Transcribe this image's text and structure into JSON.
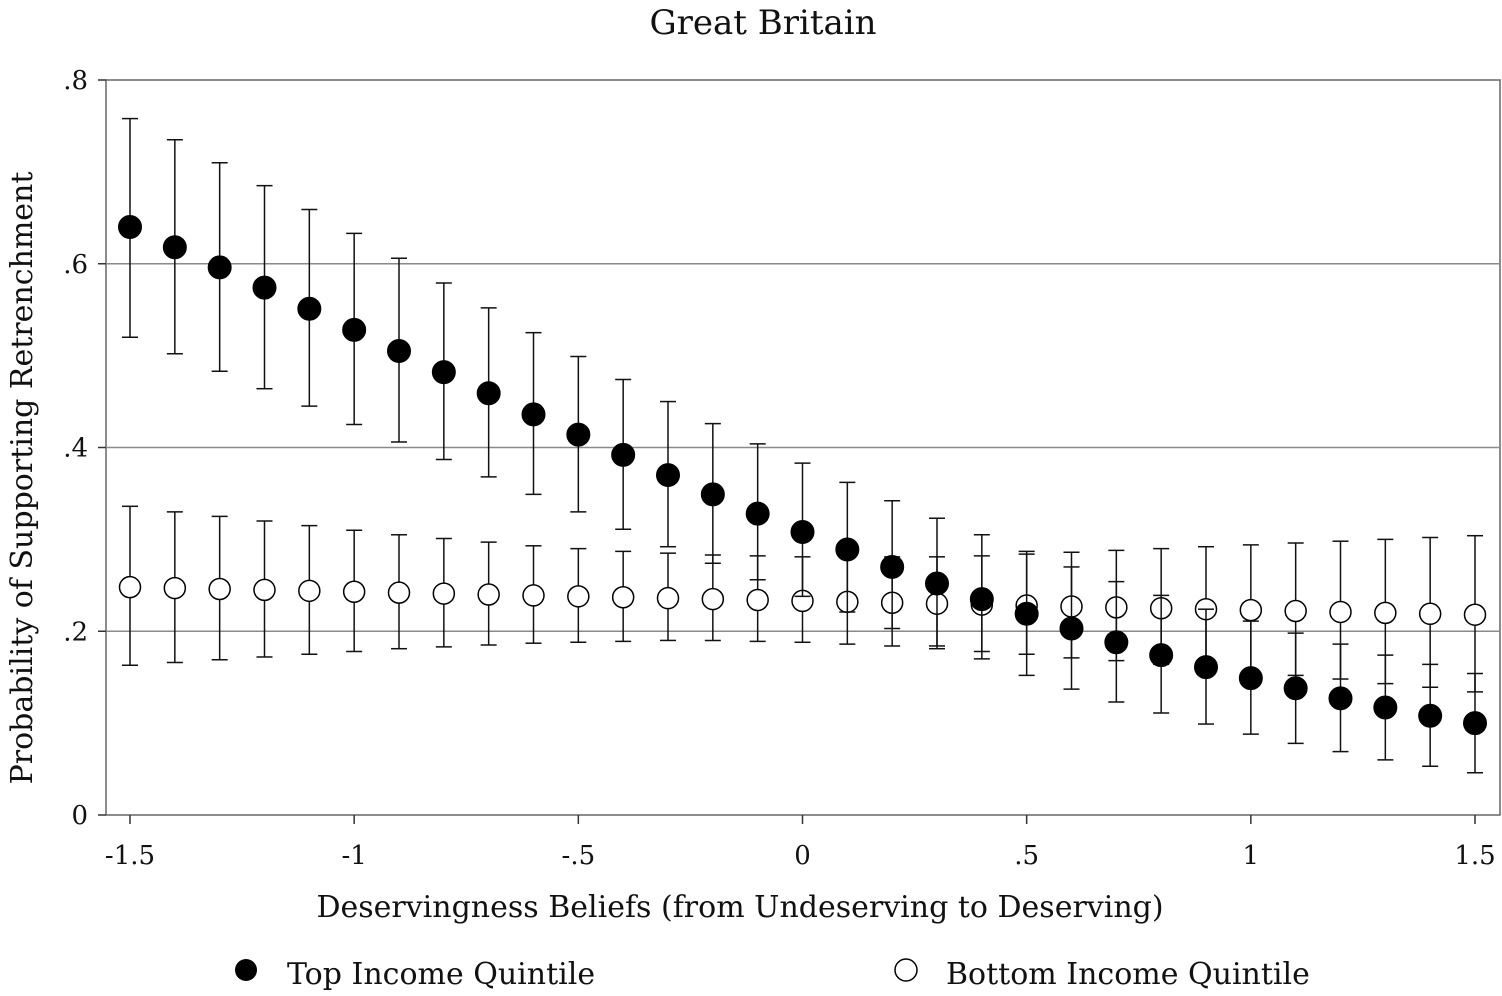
{
  "chart_data": {
    "type": "scatter",
    "title": "Great Britain",
    "xlabel": "Deservingness Beliefs (from Undeserving to Deserving)",
    "ylabel": "Probability of Supporting Retrenchment",
    "xlim": [
      -1.5,
      1.5
    ],
    "ylim": [
      0,
      0.8
    ],
    "x_ticks": [
      -1.5,
      -1,
      -0.5,
      0,
      0.5,
      1,
      1.5
    ],
    "x_tick_labels": [
      "-1.5",
      "-1",
      "-.5",
      "0",
      ".5",
      "1",
      "1.5"
    ],
    "y_ticks": [
      0,
      0.2,
      0.4,
      0.6,
      0.8
    ],
    "y_tick_labels": [
      "0",
      ".2",
      ".4",
      ".6",
      ".8"
    ],
    "grid": "horizontal",
    "legend_position": "bottom",
    "x": [
      -1.5,
      -1.4,
      -1.3,
      -1.2,
      -1.1,
      -1.0,
      -0.9,
      -0.8,
      -0.7,
      -0.6,
      -0.5,
      -0.4,
      -0.3,
      -0.2,
      -0.1,
      0.0,
      0.1,
      0.2,
      0.3,
      0.4,
      0.5,
      0.6,
      0.7,
      0.8,
      0.9,
      1.0,
      1.1,
      1.2,
      1.3,
      1.4,
      1.5
    ],
    "series": [
      {
        "name": "Top Income Quintile",
        "marker": "filled-circle",
        "color": "#000000",
        "values": [
          0.64,
          0.618,
          0.596,
          0.574,
          0.551,
          0.528,
          0.505,
          0.482,
          0.459,
          0.436,
          0.414,
          0.392,
          0.37,
          0.349,
          0.328,
          0.308,
          0.289,
          0.27,
          0.252,
          0.235,
          0.219,
          0.203,
          0.188,
          0.174,
          0.161,
          0.149,
          0.138,
          0.127,
          0.117,
          0.108,
          0.1
        ],
        "lower": [
          0.52,
          0.502,
          0.483,
          0.464,
          0.445,
          0.425,
          0.406,
          0.387,
          0.368,
          0.349,
          0.33,
          0.311,
          0.292,
          0.274,
          0.256,
          0.238,
          0.221,
          0.203,
          0.184,
          0.17,
          0.152,
          0.137,
          0.123,
          0.111,
          0.099,
          0.088,
          0.078,
          0.069,
          0.06,
          0.053,
          0.046
        ],
        "upper": [
          0.758,
          0.735,
          0.71,
          0.685,
          0.659,
          0.633,
          0.606,
          0.579,
          0.552,
          0.525,
          0.499,
          0.474,
          0.45,
          0.426,
          0.404,
          0.383,
          0.362,
          0.342,
          0.323,
          0.305,
          0.287,
          0.27,
          0.254,
          0.239,
          0.224,
          0.211,
          0.198,
          0.186,
          0.174,
          0.164,
          0.154
        ]
      },
      {
        "name": "Bottom Income Quintile",
        "marker": "hollow-circle",
        "color": "#000000",
        "values": [
          0.248,
          0.247,
          0.246,
          0.245,
          0.244,
          0.243,
          0.242,
          0.241,
          0.24,
          0.239,
          0.238,
          0.237,
          0.236,
          0.235,
          0.234,
          0.233,
          0.232,
          0.231,
          0.23,
          0.229,
          0.228,
          0.227,
          0.226,
          0.225,
          0.224,
          0.223,
          0.222,
          0.221,
          0.22,
          0.219,
          0.218
        ],
        "lower": [
          0.163,
          0.166,
          0.169,
          0.172,
          0.175,
          0.178,
          0.181,
          0.183,
          0.185,
          0.187,
          0.188,
          0.189,
          0.19,
          0.19,
          0.189,
          0.188,
          0.186,
          0.184,
          0.181,
          0.178,
          0.175,
          0.171,
          0.168,
          0.164,
          0.16,
          0.156,
          0.152,
          0.148,
          0.143,
          0.139,
          0.134
        ],
        "upper": [
          0.336,
          0.33,
          0.325,
          0.32,
          0.315,
          0.31,
          0.305,
          0.301,
          0.297,
          0.293,
          0.29,
          0.287,
          0.285,
          0.283,
          0.282,
          0.281,
          0.281,
          0.281,
          0.281,
          0.282,
          0.284,
          0.286,
          0.288,
          0.29,
          0.292,
          0.294,
          0.296,
          0.298,
          0.3,
          0.302,
          0.304
        ]
      }
    ]
  }
}
